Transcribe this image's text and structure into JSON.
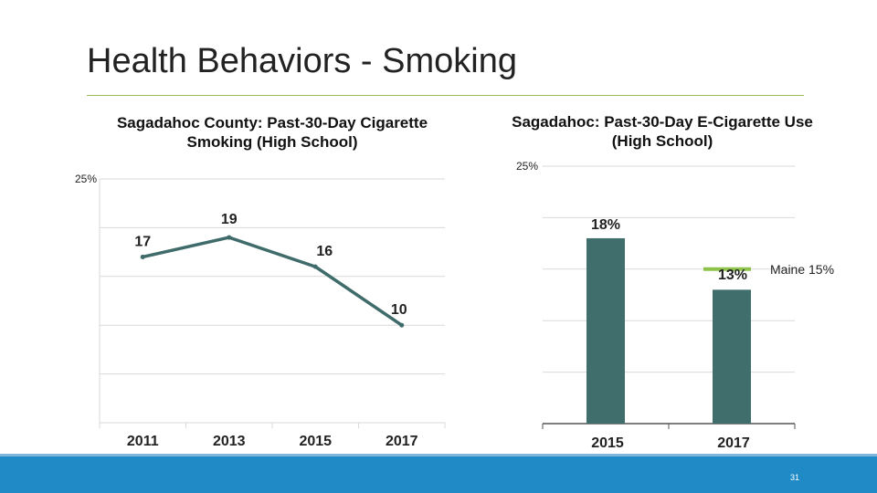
{
  "slide": {
    "title": "Health Behaviors - Smoking",
    "page_number": "31"
  },
  "colors": {
    "line": "#3f6b6a",
    "bar": "#3f6e6c",
    "maine_marker": "#8dc34a",
    "rule": "#9bbb59",
    "footer": "#1f8ac6",
    "grid": "#d9d9d9"
  },
  "chart_data": [
    {
      "type": "line",
      "title": "Sagadahoc County: Past-30-Day Cigarette Smoking (High School)",
      "categories": [
        "2011",
        "2013",
        "2015",
        "2017"
      ],
      "values": [
        17,
        19,
        16,
        10
      ],
      "value_labels": [
        "17",
        "19",
        "16",
        "10"
      ],
      "ylim": [
        0,
        25
      ],
      "y_tick_label": "25%",
      "grid": true,
      "legend": "none"
    },
    {
      "type": "bar",
      "title": "Sagadahoc: Past-30-Day E-Cigarette Use (High School)",
      "categories": [
        "2015",
        "2017"
      ],
      "values": [
        18,
        13
      ],
      "value_labels": [
        "18%",
        "13%"
      ],
      "ylim": [
        0,
        25
      ],
      "y_tick_label": "25%",
      "grid": true,
      "annotation": {
        "label": "Maine 15%",
        "value": 15,
        "category": "2017"
      }
    }
  ]
}
